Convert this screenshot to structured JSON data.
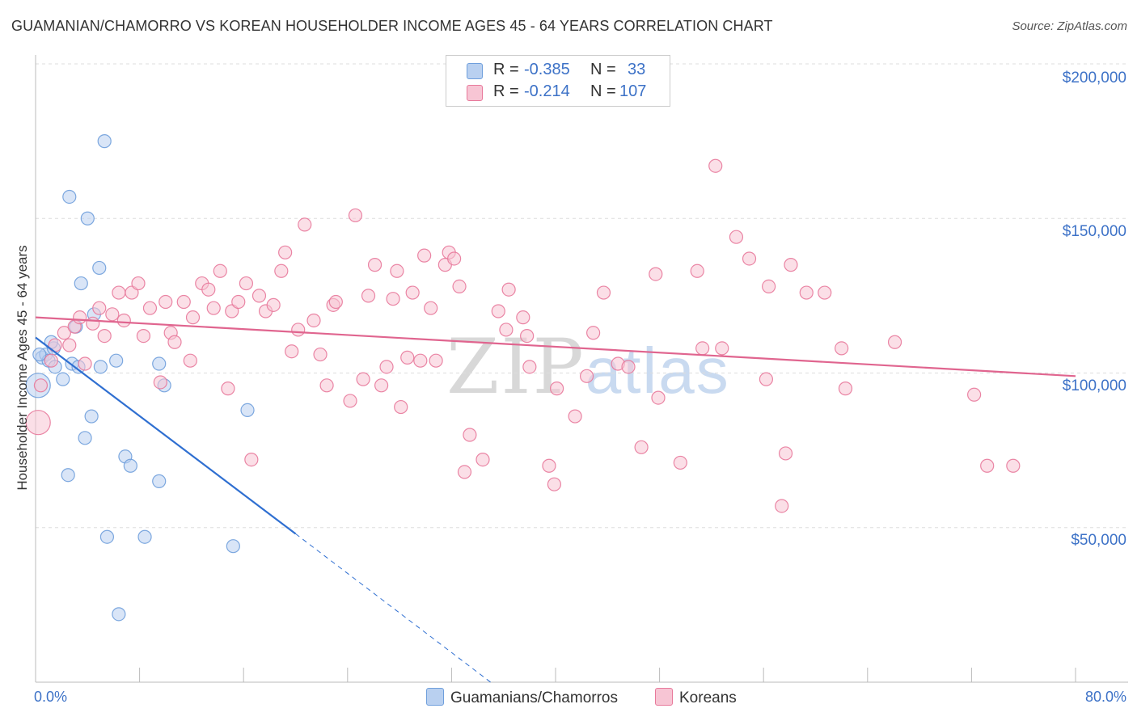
{
  "chart_data": {
    "type": "scatter",
    "title": "GUAMANIAN/CHAMORRO VS KOREAN HOUSEHOLDER INCOME AGES 45 - 64 YEARS CORRELATION CHART",
    "source": "Source: ZipAtlas.com",
    "xlabel": "",
    "ylabel": "Householder Income Ages 45 - 64 years",
    "xlim": [
      0,
      80
    ],
    "ylim": [
      0,
      200000
    ],
    "x_tick_labels": {
      "min": "0.0%",
      "max": "80.0%"
    },
    "y_tick_labels": [
      "$50,000",
      "$100,000",
      "$150,000",
      "$200,000"
    ],
    "y_tick_values": [
      50000,
      100000,
      150000,
      200000
    ],
    "watermark": {
      "zip": "ZIP",
      "atlas": "atlas"
    },
    "legend": [
      {
        "r_label": "R =",
        "r_value": "-0.385",
        "n_label": "N =",
        "n_value": "33"
      },
      {
        "r_label": "R =",
        "r_value": "-0.214",
        "n_label": "N =",
        "n_value": "107"
      }
    ],
    "series": [
      {
        "name": "Guamanians/Chamorros",
        "color": "#6f9fdc",
        "fill": "#b9d0f0",
        "trend": {
          "x_start": 0.0,
          "y_start": 111500,
          "x_end": 20.0,
          "y_end": 48000,
          "dash_to_x": 35.0,
          "dash_to_y": 0
        },
        "points": [
          {
            "x": 0.2,
            "y": 96000,
            "big": true
          },
          {
            "x": 0.5,
            "y": 105000
          },
          {
            "x": 0.8,
            "y": 106000
          },
          {
            "x": 1.0,
            "y": 104000
          },
          {
            "x": 1.4,
            "y": 108000
          },
          {
            "x": 1.5,
            "y": 102000
          },
          {
            "x": 2.1,
            "y": 98000
          },
          {
            "x": 2.5,
            "y": 67000
          },
          {
            "x": 2.6,
            "y": 157000
          },
          {
            "x": 2.8,
            "y": 103000
          },
          {
            "x": 3.1,
            "y": 115000
          },
          {
            "x": 3.3,
            "y": 102000
          },
          {
            "x": 3.5,
            "y": 129000
          },
          {
            "x": 3.8,
            "y": 79000
          },
          {
            "x": 4.0,
            "y": 150000
          },
          {
            "x": 4.3,
            "y": 86000
          },
          {
            "x": 4.5,
            "y": 119000
          },
          {
            "x": 4.9,
            "y": 134000
          },
          {
            "x": 5.0,
            "y": 102000
          },
          {
            "x": 5.3,
            "y": 175000
          },
          {
            "x": 5.5,
            "y": 47000
          },
          {
            "x": 6.2,
            "y": 104000
          },
          {
            "x": 6.4,
            "y": 22000
          },
          {
            "x": 6.9,
            "y": 73000
          },
          {
            "x": 7.3,
            "y": 70000
          },
          {
            "x": 8.4,
            "y": 47000
          },
          {
            "x": 9.5,
            "y": 103000
          },
          {
            "x": 9.5,
            "y": 65000
          },
          {
            "x": 9.9,
            "y": 96000
          },
          {
            "x": 15.2,
            "y": 44000
          },
          {
            "x": 16.3,
            "y": 88000
          },
          {
            "x": 1.2,
            "y": 110000
          },
          {
            "x": 0.3,
            "y": 106000
          }
        ]
      },
      {
        "name": "Koreans",
        "color": "#e8799b",
        "fill": "#f7c5d4",
        "trend": {
          "x_start": 0.0,
          "y_start": 118000,
          "x_end": 80.0,
          "y_end": 99000
        },
        "points": [
          {
            "x": 0.2,
            "y": 84000,
            "big": true
          },
          {
            "x": 0.4,
            "y": 96000
          },
          {
            "x": 1.2,
            "y": 104000
          },
          {
            "x": 1.5,
            "y": 109000
          },
          {
            "x": 2.2,
            "y": 113000
          },
          {
            "x": 2.6,
            "y": 109000
          },
          {
            "x": 3.0,
            "y": 115000
          },
          {
            "x": 3.4,
            "y": 118000
          },
          {
            "x": 3.8,
            "y": 103000
          },
          {
            "x": 4.4,
            "y": 116000
          },
          {
            "x": 4.9,
            "y": 121000
          },
          {
            "x": 5.3,
            "y": 112000
          },
          {
            "x": 5.9,
            "y": 119000
          },
          {
            "x": 6.4,
            "y": 126000
          },
          {
            "x": 6.8,
            "y": 117000
          },
          {
            "x": 7.4,
            "y": 126000
          },
          {
            "x": 7.9,
            "y": 129000
          },
          {
            "x": 8.3,
            "y": 112000
          },
          {
            "x": 8.8,
            "y": 121000
          },
          {
            "x": 9.6,
            "y": 97000
          },
          {
            "x": 10.0,
            "y": 123000
          },
          {
            "x": 10.4,
            "y": 113000
          },
          {
            "x": 10.7,
            "y": 110000
          },
          {
            "x": 11.4,
            "y": 123000
          },
          {
            "x": 11.9,
            "y": 104000
          },
          {
            "x": 12.1,
            "y": 118000
          },
          {
            "x": 12.8,
            "y": 129000
          },
          {
            "x": 13.3,
            "y": 127000
          },
          {
            "x": 13.7,
            "y": 121000
          },
          {
            "x": 14.2,
            "y": 133000
          },
          {
            "x": 14.8,
            "y": 95000
          },
          {
            "x": 15.1,
            "y": 120000
          },
          {
            "x": 15.6,
            "y": 123000
          },
          {
            "x": 16.2,
            "y": 129000
          },
          {
            "x": 16.6,
            "y": 72000
          },
          {
            "x": 17.2,
            "y": 125000
          },
          {
            "x": 17.7,
            "y": 120000
          },
          {
            "x": 18.3,
            "y": 122000
          },
          {
            "x": 18.9,
            "y": 133000
          },
          {
            "x": 19.2,
            "y": 139000
          },
          {
            "x": 19.7,
            "y": 107000
          },
          {
            "x": 20.2,
            "y": 114000
          },
          {
            "x": 20.7,
            "y": 148000
          },
          {
            "x": 21.4,
            "y": 117000
          },
          {
            "x": 21.9,
            "y": 106000
          },
          {
            "x": 22.4,
            "y": 96000
          },
          {
            "x": 22.9,
            "y": 122000
          },
          {
            "x": 23.1,
            "y": 123000
          },
          {
            "x": 24.2,
            "y": 91000
          },
          {
            "x": 24.6,
            "y": 151000
          },
          {
            "x": 25.2,
            "y": 98000
          },
          {
            "x": 25.6,
            "y": 125000
          },
          {
            "x": 26.1,
            "y": 135000
          },
          {
            "x": 26.6,
            "y": 96000
          },
          {
            "x": 27.0,
            "y": 102000
          },
          {
            "x": 27.5,
            "y": 124000
          },
          {
            "x": 27.8,
            "y": 133000
          },
          {
            "x": 28.1,
            "y": 89000
          },
          {
            "x": 28.6,
            "y": 105000
          },
          {
            "x": 29.0,
            "y": 126000
          },
          {
            "x": 29.6,
            "y": 104000
          },
          {
            "x": 29.9,
            "y": 138000
          },
          {
            "x": 30.4,
            "y": 121000
          },
          {
            "x": 30.8,
            "y": 104000
          },
          {
            "x": 31.5,
            "y": 135000
          },
          {
            "x": 31.8,
            "y": 139000
          },
          {
            "x": 32.2,
            "y": 137000
          },
          {
            "x": 32.6,
            "y": 128000
          },
          {
            "x": 33.0,
            "y": 68000
          },
          {
            "x": 33.4,
            "y": 80000
          },
          {
            "x": 34.4,
            "y": 72000
          },
          {
            "x": 35.6,
            "y": 120000
          },
          {
            "x": 36.2,
            "y": 114000
          },
          {
            "x": 36.4,
            "y": 127000
          },
          {
            "x": 37.5,
            "y": 118000
          },
          {
            "x": 37.8,
            "y": 112000
          },
          {
            "x": 38.0,
            "y": 102000
          },
          {
            "x": 39.5,
            "y": 70000
          },
          {
            "x": 39.9,
            "y": 64000
          },
          {
            "x": 40.1,
            "y": 95000
          },
          {
            "x": 41.5,
            "y": 86000
          },
          {
            "x": 42.4,
            "y": 99000
          },
          {
            "x": 42.9,
            "y": 113000
          },
          {
            "x": 43.7,
            "y": 126000
          },
          {
            "x": 44.8,
            "y": 103000
          },
          {
            "x": 45.6,
            "y": 102000
          },
          {
            "x": 46.6,
            "y": 76000
          },
          {
            "x": 47.7,
            "y": 132000
          },
          {
            "x": 47.9,
            "y": 92000
          },
          {
            "x": 49.6,
            "y": 71000
          },
          {
            "x": 50.9,
            "y": 133000
          },
          {
            "x": 51.3,
            "y": 108000
          },
          {
            "x": 52.3,
            "y": 167000
          },
          {
            "x": 52.8,
            "y": 108000
          },
          {
            "x": 53.9,
            "y": 144000
          },
          {
            "x": 54.9,
            "y": 137000
          },
          {
            "x": 56.2,
            "y": 98000
          },
          {
            "x": 56.4,
            "y": 128000
          },
          {
            "x": 57.4,
            "y": 57000
          },
          {
            "x": 57.7,
            "y": 74000
          },
          {
            "x": 58.1,
            "y": 135000
          },
          {
            "x": 59.3,
            "y": 126000
          },
          {
            "x": 60.7,
            "y": 126000
          },
          {
            "x": 62.0,
            "y": 108000
          },
          {
            "x": 62.3,
            "y": 95000
          },
          {
            "x": 66.1,
            "y": 110000
          },
          {
            "x": 72.2,
            "y": 93000
          },
          {
            "x": 73.2,
            "y": 70000
          },
          {
            "x": 75.2,
            "y": 70000
          }
        ]
      }
    ]
  }
}
